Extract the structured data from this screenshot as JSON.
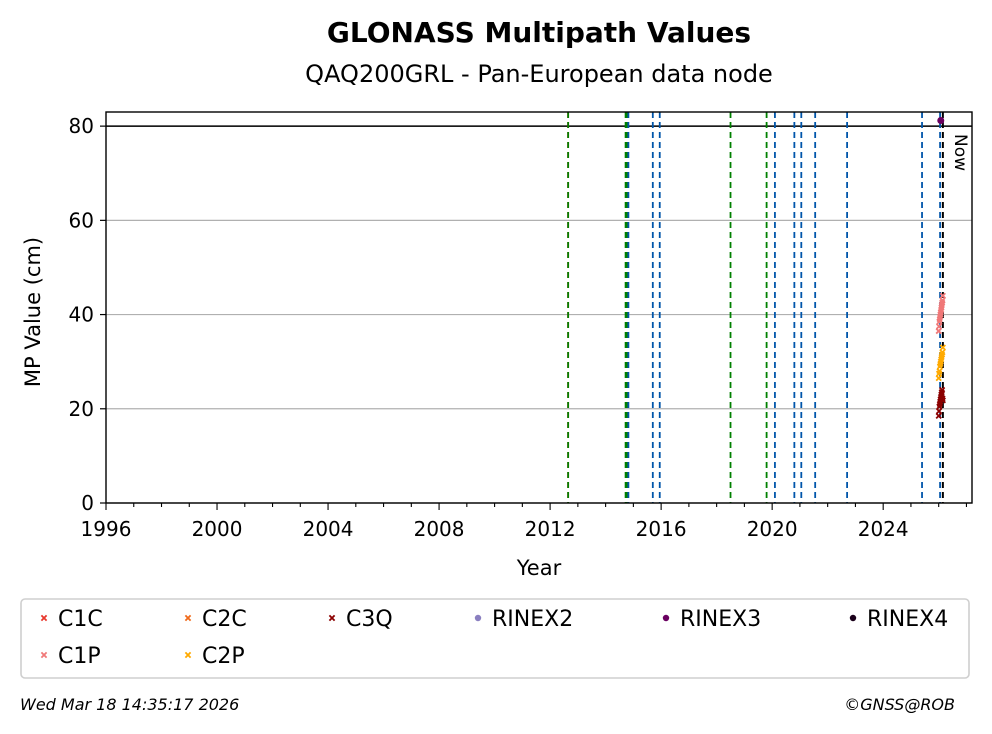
{
  "chart_data": {
    "type": "scatter",
    "title": "GLONASS Multipath Values",
    "subtitle": "QAQ200GRL - Pan-European data node",
    "xlabel": "Year",
    "ylabel": "MP Value (cm)",
    "xlim": [
      1996,
      2027.2
    ],
    "ylim": [
      0,
      83
    ],
    "x_ticks": [
      "1996",
      "2000",
      "2004",
      "2008",
      "2012",
      "2016",
      "2020",
      "2024"
    ],
    "y_ticks": [
      "0",
      "20",
      "40",
      "60",
      "80"
    ],
    "grid": "y",
    "hline": 80,
    "now_label": "Now",
    "now_x": 2026.15,
    "vlines": [
      {
        "x": 2012.65,
        "color": "#ff0000"
      },
      {
        "x": 2012.65,
        "color": "#008000"
      },
      {
        "x": 2014.72,
        "color": "#008000"
      },
      {
        "x": 2014.78,
        "color": "#008000"
      },
      {
        "x": 2014.82,
        "color": "#0055aa"
      },
      {
        "x": 2015.7,
        "color": "#0055aa"
      },
      {
        "x": 2015.95,
        "color": "#0055aa"
      },
      {
        "x": 2018.5,
        "color": "#008000"
      },
      {
        "x": 2019.8,
        "color": "#008000"
      },
      {
        "x": 2020.1,
        "color": "#0055aa"
      },
      {
        "x": 2020.8,
        "color": "#0055aa"
      },
      {
        "x": 2021.05,
        "color": "#0055aa"
      },
      {
        "x": 2021.55,
        "color": "#0055aa"
      },
      {
        "x": 2022.7,
        "color": "#0055aa"
      },
      {
        "x": 2025.4,
        "color": "#0055aa"
      },
      {
        "x": 2026.05,
        "color": "#0055aa"
      }
    ],
    "series": [
      {
        "name": "C1C",
        "color": "#e8372c",
        "marker": "x",
        "x_range": [
          2026.0,
          2026.15
        ],
        "values": []
      },
      {
        "name": "C2C",
        "color": "#f06a1a",
        "marker": "x",
        "x_range": [
          2026.0,
          2026.15
        ],
        "values": []
      },
      {
        "name": "C3Q",
        "color": "#8b0000",
        "marker": "x",
        "x_range": [
          2026.0,
          2026.15
        ],
        "values": [
          18.5,
          19.5,
          20.5,
          21.0,
          21.5,
          22.0,
          22.5,
          23.0,
          23.5,
          24.0,
          22.2,
          21.8
        ]
      },
      {
        "name": "RINEX2",
        "color": "#8a7fc0",
        "marker": "dot",
        "x_range": [
          2026.0,
          2026.15
        ],
        "values": []
      },
      {
        "name": "RINEX3",
        "color": "#6a0060",
        "marker": "dot",
        "x_range": [
          2026.0,
          2026.15
        ],
        "values": [
          81.2
        ]
      },
      {
        "name": "RINEX4",
        "color": "#1a001a",
        "marker": "dot",
        "x_range": [
          2026.0,
          2026.15
        ],
        "values": []
      },
      {
        "name": "C1P",
        "color": "#f07878",
        "marker": "x",
        "x_range": [
          2026.0,
          2026.15
        ],
        "values": [
          36.5,
          37.5,
          38.5,
          39.0,
          39.5,
          40.0,
          40.5,
          41.0,
          41.5,
          42.0,
          42.5,
          43.0,
          44.0
        ]
      },
      {
        "name": "C2P",
        "color": "#ffaa00",
        "marker": "x",
        "x_range": [
          2026.0,
          2026.15
        ],
        "values": [
          26.5,
          27.5,
          28.0,
          29.0,
          29.5,
          30.0,
          30.5,
          31.0,
          31.5,
          32.0,
          33.0
        ]
      }
    ],
    "legend": {
      "placement": "bottom",
      "rows": [
        [
          "C1C",
          "C2C",
          "C3Q",
          "RINEX2",
          "RINEX3",
          "RINEX4"
        ],
        [
          "C1P",
          "C2P"
        ]
      ]
    }
  },
  "footer": {
    "timestamp": "Wed Mar 18 14:35:17 2026",
    "copyright": "©GNSS@ROB"
  }
}
